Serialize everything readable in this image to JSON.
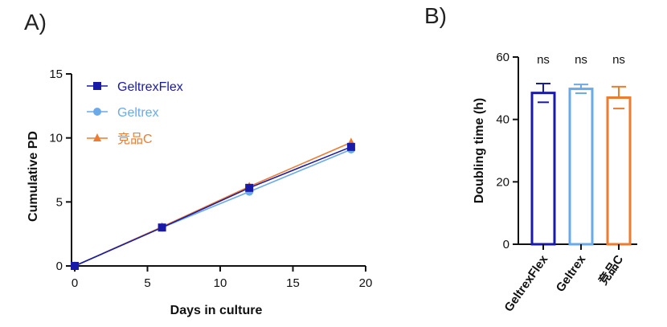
{
  "panels": {
    "a_label": "A)",
    "b_label": "B)"
  },
  "colors": {
    "geltrexflex": "#1a1aa8",
    "geltrex": "#6aaae8",
    "competitor": "#ee7b2f",
    "axis": "#111111"
  },
  "chart_data": [
    {
      "type": "line",
      "title": "",
      "xlabel": "Days in culture",
      "ylabel": "Cumulative PD",
      "xlim": [
        0,
        20
      ],
      "ylim": [
        0,
        15
      ],
      "xticks": [
        0,
        5,
        10,
        15,
        20
      ],
      "yticks": [
        0,
        5,
        10,
        15
      ],
      "legend_position": "top-left",
      "x": [
        0,
        6,
        12,
        19
      ],
      "series": [
        {
          "name": "GeltrexFlex",
          "marker": "square",
          "color": "#1a1aa8",
          "values": [
            0,
            3.0,
            6.1,
            9.3
          ]
        },
        {
          "name": "Geltrex",
          "marker": "circle",
          "color": "#6aaae8",
          "values": [
            0,
            3.0,
            5.8,
            9.1
          ]
        },
        {
          "name": "竞品C",
          "marker": "triangle",
          "color": "#ee7b2f",
          "values": [
            0,
            3.05,
            6.2,
            9.65
          ]
        }
      ]
    },
    {
      "type": "bar",
      "title": "",
      "xlabel": "",
      "ylabel": "Doubling time (h)",
      "ylim": [
        0,
        60
      ],
      "yticks": [
        0,
        20,
        40,
        60
      ],
      "categories": [
        "GeltrexFlex",
        "Geltrex",
        "竞品C"
      ],
      "values": [
        48.5,
        49.8,
        47.0
      ],
      "errors": [
        3.0,
        1.4,
        3.5
      ],
      "colors": [
        "#1a1aa8",
        "#6aaae8",
        "#ee7b2f"
      ],
      "annotations": [
        "ns",
        "ns",
        "ns"
      ]
    }
  ]
}
